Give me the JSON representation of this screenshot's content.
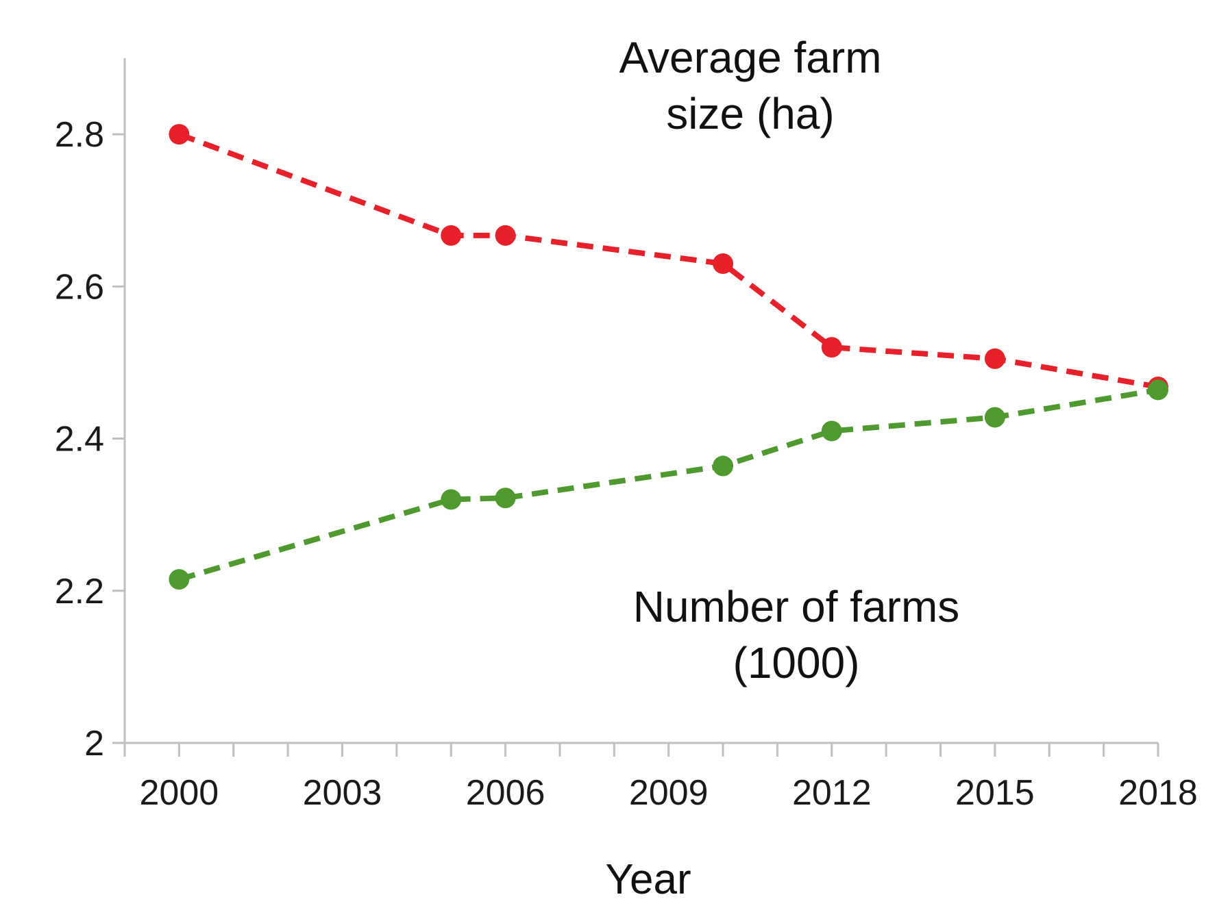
{
  "chart_data": {
    "type": "line",
    "xlabel": "Year",
    "ylabel": "",
    "xlim": [
      1999,
      2018
    ],
    "ylim": [
      2,
      2.9
    ],
    "x_ticks": [
      "2000",
      "2003",
      "2006",
      "2009",
      "2012",
      "2015",
      "2018"
    ],
    "y_ticks": [
      "2",
      "2.2",
      "2.4",
      "2.6",
      "2.8"
    ],
    "grid": false,
    "series": [
      {
        "color": "#e8202a",
        "points": [
          {
            "x": 2000,
            "y": 2.8
          },
          {
            "x": 2005,
            "y": 2.667
          },
          {
            "x": 2006,
            "y": 2.667
          },
          {
            "x": 2010,
            "y": 2.63
          },
          {
            "x": 2012,
            "y": 2.52
          },
          {
            "x": 2015,
            "y": 2.505
          },
          {
            "x": 2018,
            "y": 2.468
          }
        ]
      },
      {
        "color": "#4e9a2e",
        "points": [
          {
            "x": 2000,
            "y": 2.215
          },
          {
            "x": 2005,
            "y": 2.32
          },
          {
            "x": 2006,
            "y": 2.322
          },
          {
            "x": 2010,
            "y": 2.364
          },
          {
            "x": 2012,
            "y": 2.41
          },
          {
            "x": 2015,
            "y": 2.428
          },
          {
            "x": 2018,
            "y": 2.464
          }
        ]
      }
    ],
    "annotations": {
      "red_line_1": "Average farm",
      "red_line_2": "size (ha)",
      "green_line_1": "Number of farms",
      "green_line_2": "(1000)"
    }
  }
}
